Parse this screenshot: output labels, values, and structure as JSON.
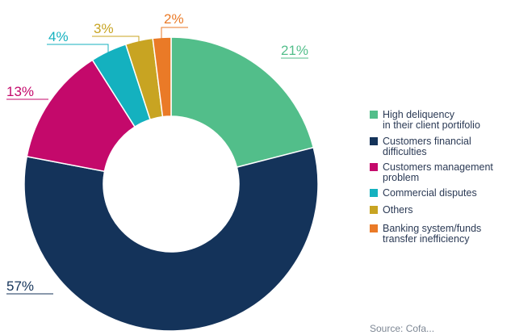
{
  "chart_data": {
    "type": "pie",
    "donut": true,
    "categories": [
      "High deliquency in their client portifolio",
      "Customers financial difficulties",
      "Customers management problem",
      "Commercial disputes",
      "Others",
      "Banking system/funds transfer inefficiency"
    ],
    "values": [
      21,
      57,
      13,
      4,
      3,
      2
    ],
    "value_labels": [
      "21%",
      "57%",
      "13%",
      "4%",
      "3%",
      "2%"
    ],
    "colors": [
      "#52be8a",
      "#14335a",
      "#c4096b",
      "#14b1bf",
      "#c8a422",
      "#ea7a27"
    ],
    "legend_position": "right"
  },
  "legend": {
    "items": [
      {
        "lines": [
          "High deliquency",
          "in their client portifolio"
        ],
        "color": "#52be8a"
      },
      {
        "lines": [
          "Customers financial",
          "difficulties"
        ],
        "color": "#14335a"
      },
      {
        "lines": [
          "Customers management",
          "problem"
        ],
        "color": "#c4096b"
      },
      {
        "lines": [
          "Commercial disputes"
        ],
        "color": "#14b1bf"
      },
      {
        "lines": [
          "Others"
        ],
        "color": "#c8a422"
      },
      {
        "lines": [
          "Banking system/funds",
          "transfer inefficiency"
        ],
        "color": "#ea7a27"
      }
    ]
  },
  "source": "Source: Cofa..."
}
